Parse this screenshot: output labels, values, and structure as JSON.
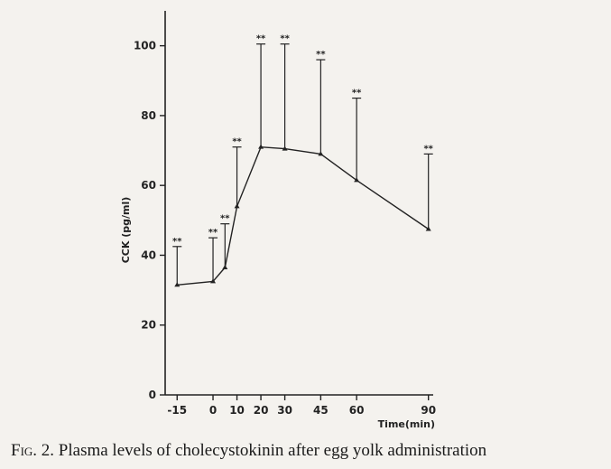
{
  "chart_data": {
    "type": "line",
    "x": [
      -15,
      0,
      5,
      10,
      20,
      30,
      45,
      60,
      90
    ],
    "values": [
      31.5,
      32.5,
      36.5,
      54,
      71,
      70.5,
      69,
      61.5,
      47.5
    ],
    "error_upper": [
      42.5,
      45,
      49,
      71,
      100.5,
      100.5,
      96,
      85,
      69
    ],
    "significance": [
      "**",
      "**",
      "**",
      "**",
      "**",
      "**",
      "**",
      "**",
      "**"
    ],
    "xticks": [
      -15,
      0,
      10,
      20,
      30,
      45,
      60,
      90
    ],
    "xtick_labels": [
      "-15",
      "0",
      "10",
      "20",
      "30",
      "45",
      "60",
      "90"
    ],
    "yticks": [
      0,
      20,
      40,
      60,
      80,
      100
    ],
    "ytick_labels": [
      "0",
      "20",
      "40",
      "60",
      "80",
      "100"
    ],
    "xlim": [
      -20,
      92
    ],
    "ylim": [
      0,
      110
    ],
    "xlabel": "Time(min)",
    "ylabel": "CCK (pg/ml)",
    "grid": false,
    "line_color": "#222222"
  },
  "caption": {
    "fig_label": "Fig. 2.",
    "text": "Plasma levels of cholecystokinin after egg yolk administration"
  }
}
